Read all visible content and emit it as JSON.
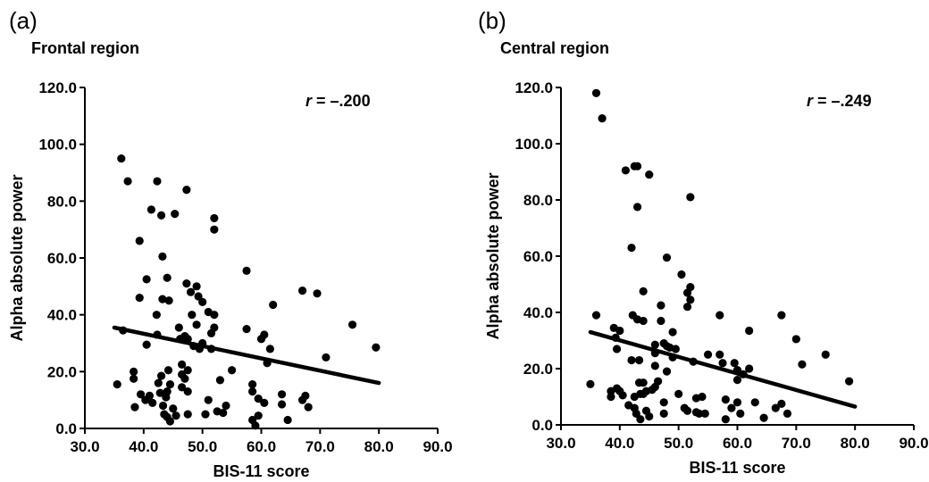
{
  "panels": [
    {
      "label": "(a)",
      "title": "Frontal region",
      "r_label": "r",
      "r_value": " = –.200"
    },
    {
      "label": "(b)",
      "title": "Central region",
      "r_label": "r",
      "r_value": " = –.249"
    }
  ],
  "chart_data": [
    {
      "type": "scatter",
      "title": "Frontal region",
      "xlabel": "BIS-11 score",
      "ylabel": "Alpha absolute power",
      "xlim": [
        30,
        90
      ],
      "ylim": [
        0,
        120
      ],
      "x_ticks": [
        "30.0",
        "40.0",
        "50.0",
        "60.0",
        "70.0",
        "80.0",
        "90.0"
      ],
      "y_ticks": [
        "0.0",
        "20.0",
        "40.0",
        "60.0",
        "80.0",
        "100.0",
        "120.0"
      ],
      "annotation": "r = –.200",
      "trendline": {
        "x": [
          35,
          80
        ],
        "y": [
          35.5,
          16.0
        ]
      },
      "points": [
        [
          35.5,
          15.5
        ],
        [
          36.2,
          95.0
        ],
        [
          36.5,
          34.5
        ],
        [
          37.3,
          87.0
        ],
        [
          38.3,
          17.5
        ],
        [
          38.3,
          20.0
        ],
        [
          38.5,
          7.5
        ],
        [
          39.3,
          66.0
        ],
        [
          39.3,
          46.0
        ],
        [
          39.5,
          12.0
        ],
        [
          40.5,
          52.5
        ],
        [
          40.5,
          29.5
        ],
        [
          40.3,
          10.0
        ],
        [
          41.0,
          11.5
        ],
        [
          41.3,
          77.0
        ],
        [
          41.5,
          9.0
        ],
        [
          42.3,
          87.0
        ],
        [
          42.2,
          40.0
        ],
        [
          42.3,
          33.0
        ],
        [
          42.5,
          16.0
        ],
        [
          42.8,
          12.5
        ],
        [
          43.0,
          75.0
        ],
        [
          43.2,
          60.5
        ],
        [
          43.2,
          45.5
        ],
        [
          43.0,
          18.5
        ],
        [
          43.3,
          8.0
        ],
        [
          43.5,
          5.0
        ],
        [
          43.8,
          11.0
        ],
        [
          44.0,
          13.0
        ],
        [
          44.0,
          4.0
        ],
        [
          44.2,
          20.5
        ],
        [
          44.0,
          53.0
        ],
        [
          44.3,
          45.0
        ],
        [
          44.5,
          2.5
        ],
        [
          44.5,
          15.5
        ],
        [
          45.0,
          7.0
        ],
        [
          45.3,
          75.5
        ],
        [
          45.5,
          4.5
        ],
        [
          46.0,
          35.5
        ],
        [
          46.2,
          31.5
        ],
        [
          46.5,
          22.5
        ],
        [
          46.5,
          14.5
        ],
        [
          46.5,
          19.0
        ],
        [
          47.0,
          17.5
        ],
        [
          47.0,
          32.5
        ],
        [
          47.3,
          84.0
        ],
        [
          47.3,
          51.0
        ],
        [
          47.5,
          31.5
        ],
        [
          47.5,
          20.5
        ],
        [
          47.5,
          13.0
        ],
        [
          47.5,
          5.0
        ],
        [
          48.0,
          48.0
        ],
        [
          48.2,
          40.0
        ],
        [
          48.5,
          29.0
        ],
        [
          49.0,
          50.0
        ],
        [
          49.0,
          36.5
        ],
        [
          49.3,
          46.5
        ],
        [
          49.5,
          28.0
        ],
        [
          50.0,
          44.5
        ],
        [
          50.0,
          30.0
        ],
        [
          50.5,
          5.0
        ],
        [
          51.0,
          41.0
        ],
        [
          51.5,
          33.5
        ],
        [
          51.5,
          28.0
        ],
        [
          51.0,
          10.0
        ],
        [
          52.0,
          74.0
        ],
        [
          52.0,
          70.0
        ],
        [
          52.0,
          35.5
        ],
        [
          52.0,
          40.0
        ],
        [
          52.5,
          6.0
        ],
        [
          53.0,
          17.0
        ],
        [
          53.5,
          5.5
        ],
        [
          54.0,
          8.0
        ],
        [
          55.0,
          20.5
        ],
        [
          57.5,
          55.5
        ],
        [
          57.5,
          35.0
        ],
        [
          58.5,
          15.5
        ],
        [
          58.5,
          13.0
        ],
        [
          58.5,
          3.0
        ],
        [
          59.0,
          1.0
        ],
        [
          59.5,
          4.5
        ],
        [
          59.5,
          10.5
        ],
        [
          60.0,
          31.5
        ],
        [
          60.5,
          33.0
        ],
        [
          60.5,
          9.0
        ],
        [
          61.0,
          23.0
        ],
        [
          61.5,
          28.0
        ],
        [
          62.0,
          43.5
        ],
        [
          63.5,
          12.0
        ],
        [
          63.5,
          8.5
        ],
        [
          64.5,
          3.0
        ],
        [
          67.0,
          48.5
        ],
        [
          67.0,
          10.0
        ],
        [
          67.5,
          11.5
        ],
        [
          68.0,
          7.5
        ],
        [
          69.5,
          47.5
        ],
        [
          71.0,
          25.0
        ],
        [
          75.5,
          36.5
        ],
        [
          79.5,
          28.5
        ]
      ]
    },
    {
      "type": "scatter",
      "title": "Central region",
      "xlabel": "BIS-11 score",
      "ylabel": "Alpha absolute power",
      "xlim": [
        30,
        90
      ],
      "ylim": [
        0,
        120
      ],
      "x_ticks": [
        "30.0",
        "40.0",
        "50.0",
        "60.0",
        "70.0",
        "80.0",
        "90.0"
      ],
      "y_ticks": [
        "0.0",
        "20.0",
        "40.0",
        "60.0",
        "80.0",
        "100.0",
        "120.0"
      ],
      "annotation": "r = –.249",
      "trendline": {
        "x": [
          35,
          80
        ],
        "y": [
          33.0,
          6.5
        ]
      },
      "points": [
        [
          35.0,
          14.5
        ],
        [
          36.0,
          118.0
        ],
        [
          36.0,
          39.0
        ],
        [
          37.0,
          109.0
        ],
        [
          38.5,
          12.0
        ],
        [
          38.5,
          10.0
        ],
        [
          39.0,
          34.5
        ],
        [
          39.3,
          31.0
        ],
        [
          39.5,
          27.0
        ],
        [
          39.5,
          13.0
        ],
        [
          40.0,
          33.5
        ],
        [
          40.0,
          12.0
        ],
        [
          40.5,
          10.5
        ],
        [
          41.0,
          90.5
        ],
        [
          41.5,
          7.0
        ],
        [
          42.0,
          63.0
        ],
        [
          42.5,
          92.0
        ],
        [
          42.2,
          39.0
        ],
        [
          42.0,
          23.0
        ],
        [
          42.5,
          10.0
        ],
        [
          42.5,
          6.0
        ],
        [
          42.8,
          4.0
        ],
        [
          43.0,
          92.0
        ],
        [
          43.0,
          77.5
        ],
        [
          43.0,
          37.5
        ],
        [
          43.3,
          23.0
        ],
        [
          43.3,
          15.0
        ],
        [
          43.5,
          11.0
        ],
        [
          43.5,
          2.0
        ],
        [
          44.0,
          47.5
        ],
        [
          44.0,
          37.0
        ],
        [
          44.0,
          15.0
        ],
        [
          44.0,
          11.0
        ],
        [
          44.5,
          12.0
        ],
        [
          44.5,
          5.0
        ],
        [
          45.0,
          89.0
        ],
        [
          45.0,
          3.0
        ],
        [
          45.5,
          12.5
        ],
        [
          46.0,
          28.5
        ],
        [
          46.0,
          25.5
        ],
        [
          46.0,
          21.0
        ],
        [
          46.0,
          13.5
        ],
        [
          46.5,
          15.5
        ],
        [
          47.0,
          42.5
        ],
        [
          47.0,
          37.0
        ],
        [
          47.5,
          29.0
        ],
        [
          47.5,
          8.0
        ],
        [
          47.5,
          4.0
        ],
        [
          48.0,
          59.5
        ],
        [
          48.0,
          19.0
        ],
        [
          48.0,
          28.0
        ],
        [
          48.5,
          27.5
        ],
        [
          49.0,
          33.0
        ],
        [
          49.0,
          24.0
        ],
        [
          49.5,
          27.0
        ],
        [
          50.0,
          11.0
        ],
        [
          50.5,
          53.5
        ],
        [
          51.0,
          6.0
        ],
        [
          51.5,
          47.0
        ],
        [
          51.5,
          42.0
        ],
        [
          51.5,
          5.0
        ],
        [
          52.0,
          81.0
        ],
        [
          52.0,
          49.0
        ],
        [
          52.0,
          44.5
        ],
        [
          52.5,
          22.5
        ],
        [
          53.0,
          4.5
        ],
        [
          53.0,
          9.5
        ],
        [
          53.5,
          4.0
        ],
        [
          54.0,
          10.0
        ],
        [
          54.5,
          4.0
        ],
        [
          55.0,
          25.0
        ],
        [
          57.0,
          39.0
        ],
        [
          57.0,
          25.0
        ],
        [
          57.5,
          22.0
        ],
        [
          58.0,
          9.0
        ],
        [
          58.0,
          2.0
        ],
        [
          59.0,
          6.0
        ],
        [
          59.5,
          22.0
        ],
        [
          60.0,
          19.5
        ],
        [
          60.0,
          16.0
        ],
        [
          60.0,
          8.0
        ],
        [
          60.5,
          4.0
        ],
        [
          61.0,
          18.0
        ],
        [
          62.0,
          33.5
        ],
        [
          62.0,
          20.0
        ],
        [
          63.0,
          8.0
        ],
        [
          64.5,
          2.5
        ],
        [
          66.5,
          6.0
        ],
        [
          67.5,
          39.0
        ],
        [
          67.5,
          7.5
        ],
        [
          68.5,
          4.0
        ],
        [
          70.0,
          30.5
        ],
        [
          71.0,
          21.5
        ],
        [
          75.0,
          25.0
        ],
        [
          79.0,
          15.5
        ]
      ]
    }
  ]
}
